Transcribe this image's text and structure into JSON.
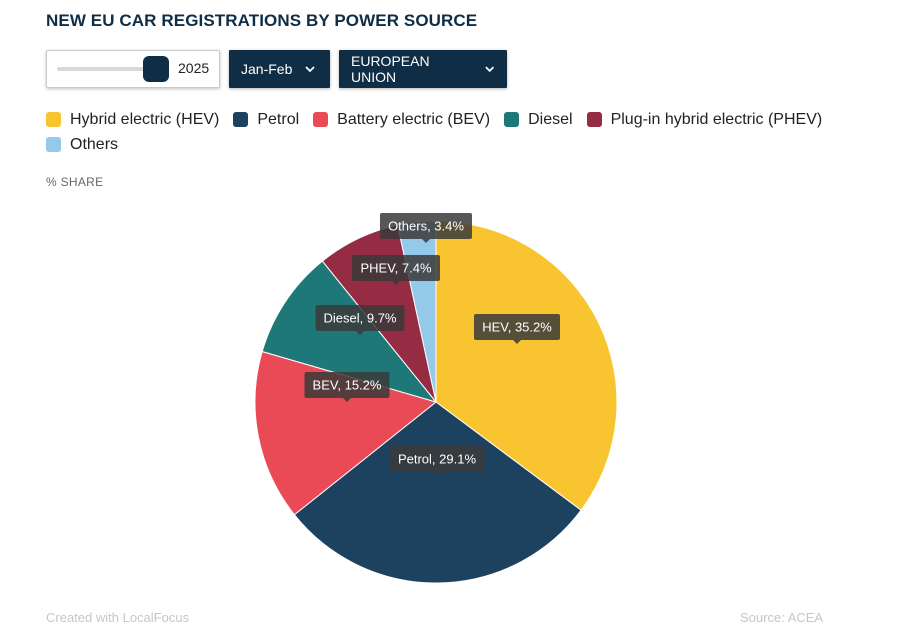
{
  "title": "NEW EU CAR REGISTRATIONS BY POWER SOURCE",
  "controls": {
    "year_value": "2025",
    "year_fraction": 1.0,
    "period_label": "Jan-Feb",
    "region_label": "EUROPEAN UNION"
  },
  "share_label": "% SHARE",
  "footer": {
    "credit": "Created with LocalFocus",
    "source": "Source:  ACEA"
  },
  "legend": [
    {
      "label": "Hybrid electric (HEV)",
      "color": "#f8c531"
    },
    {
      "label": "Petrol",
      "color": "#1c4260"
    },
    {
      "label": "Battery electric (BEV)",
      "color": "#ea4a55"
    },
    {
      "label": "Diesel",
      "color": "#1f7878"
    },
    {
      "label": "Plug-in hybrid electric (PHEV)",
      "color": "#962c43"
    },
    {
      "label": "Others",
      "color": "#94c9ea"
    }
  ],
  "chart_data": {
    "type": "pie",
    "slices": [
      {
        "name": "HEV",
        "value": 35.2,
        "label": "HEV, 35.2%",
        "color": "#f8c531"
      },
      {
        "name": "Petrol",
        "value": 29.1,
        "label": "Petrol, 29.1%",
        "color": "#1c4260"
      },
      {
        "name": "BEV",
        "value": 15.2,
        "label": "BEV, 15.2%",
        "color": "#ea4a55"
      },
      {
        "name": "Diesel",
        "value": 9.7,
        "label": "Diesel, 9.7%",
        "color": "#1f7878"
      },
      {
        "name": "PHEV",
        "value": 7.4,
        "label": "PHEV, 7.4%",
        "color": "#962c43"
      },
      {
        "name": "Others",
        "value": 3.4,
        "label": "Others, 3.4%",
        "color": "#94c9ea"
      }
    ],
    "legend_position": "top"
  }
}
